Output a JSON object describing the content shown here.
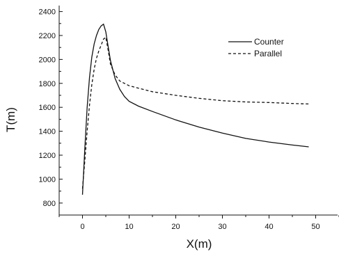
{
  "chart_data": {
    "type": "line",
    "xlabel": "X(m)",
    "ylabel": "T(m)",
    "xlim": [
      -5,
      55
    ],
    "ylim": [
      700,
      2450
    ],
    "x_ticks": [
      0,
      10,
      20,
      30,
      40,
      50
    ],
    "y_ticks": [
      800,
      1000,
      1200,
      1400,
      1600,
      1800,
      2000,
      2200,
      2400
    ],
    "grid": false,
    "legend_position": "top-right",
    "series": [
      {
        "name": "Counter",
        "style": "solid",
        "color": "#111111",
        "x": [
          0,
          0.5,
          1,
          1.5,
          2,
          2.5,
          3,
          3.5,
          4,
          4.5,
          5,
          5.5,
          6,
          7,
          8,
          9,
          10,
          12,
          15,
          20,
          25,
          30,
          35,
          40,
          45,
          48.5
        ],
        "y": [
          870,
          1250,
          1600,
          1850,
          2020,
          2130,
          2200,
          2250,
          2280,
          2295,
          2230,
          2110,
          1990,
          1840,
          1750,
          1690,
          1650,
          1610,
          1565,
          1495,
          1435,
          1385,
          1340,
          1310,
          1285,
          1270
        ]
      },
      {
        "name": "Parallel",
        "style": "dashed",
        "color": "#111111",
        "x": [
          0,
          0.5,
          1,
          1.5,
          2,
          2.5,
          3,
          3.5,
          4,
          4.5,
          5,
          5.5,
          6,
          7,
          8,
          10,
          12,
          15,
          20,
          25,
          30,
          35,
          40,
          45,
          48.5
        ],
        "y": [
          920,
          1150,
          1400,
          1620,
          1790,
          1920,
          2010,
          2070,
          2120,
          2170,
          2185,
          2080,
          1960,
          1870,
          1820,
          1780,
          1760,
          1730,
          1700,
          1675,
          1655,
          1645,
          1640,
          1632,
          1628
        ]
      }
    ]
  }
}
